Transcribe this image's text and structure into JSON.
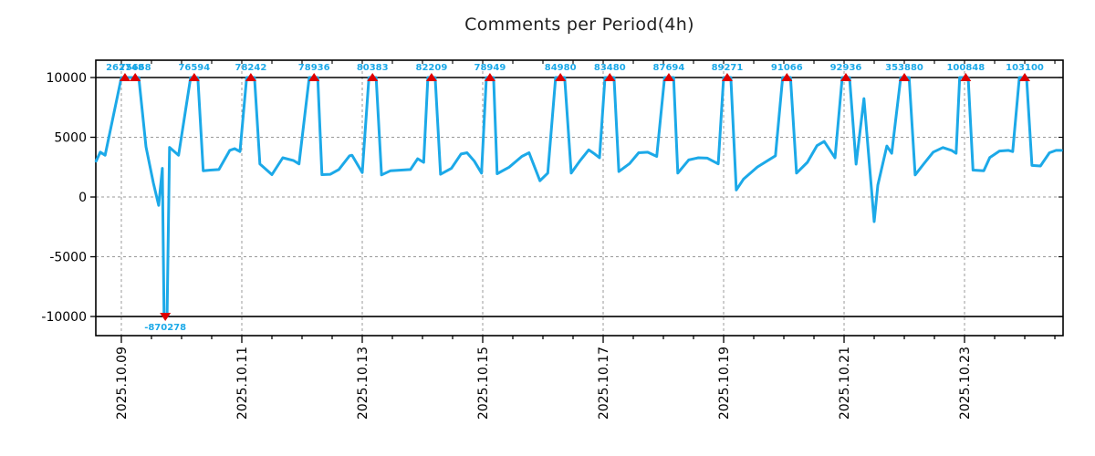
{
  "title": "Comments per Period(4h)",
  "chart_data": {
    "type": "line",
    "title": "Comments per Period(4h)",
    "xlabel": "",
    "ylabel": "",
    "x_unit": "days since 2025-10-09 00:00, sampled every 4h",
    "xlim": [
      -0.424,
      15.636
    ],
    "ylim": [
      -11600,
      11450
    ],
    "clip_value": 10000,
    "clip_lines": [
      10000,
      -10000
    ],
    "grid": "dashed gray at inner y ticks and major x ticks",
    "legend": "none",
    "line_color": "#1CA9E8",
    "marker_color": "#DE0000",
    "grid_color": "#9a9a9a",
    "axis_color": "#000000",
    "yticks": [
      {
        "v": 10000,
        "label": "10000"
      },
      {
        "v": 5000,
        "label": "5000"
      },
      {
        "v": 0,
        "label": "0"
      },
      {
        "v": -5000,
        "label": "-5000"
      },
      {
        "v": -10000,
        "label": "-10000"
      }
    ],
    "xticks": [
      {
        "t": 0,
        "label": "2025.10.09"
      },
      {
        "t": 2,
        "label": "2025.10.11"
      },
      {
        "t": 4,
        "label": "2025.10.13"
      },
      {
        "t": 6,
        "label": "2025.10.15"
      },
      {
        "t": 8,
        "label": "2025.10.17"
      },
      {
        "t": 10,
        "label": "2025.10.19"
      },
      {
        "t": 12,
        "label": "2025.10.21"
      },
      {
        "t": 14,
        "label": "2025.10.23"
      }
    ],
    "minor_tick_interval_days": 0.5,
    "peak_annotations": [
      {
        "t": 0.06,
        "label": "262748"
      },
      {
        "t": 0.23,
        "label": "75668"
      },
      {
        "t": 1.21,
        "label": "76594"
      },
      {
        "t": 2.15,
        "label": "78242"
      },
      {
        "t": 3.2,
        "label": "78936"
      },
      {
        "t": 4.17,
        "label": "80383"
      },
      {
        "t": 5.15,
        "label": "82209"
      },
      {
        "t": 6.12,
        "label": "78949"
      },
      {
        "t": 7.29,
        "label": "84980"
      },
      {
        "t": 8.11,
        "label": "83480"
      },
      {
        "t": 9.09,
        "label": "87694"
      },
      {
        "t": 10.06,
        "label": "89271"
      },
      {
        "t": 11.05,
        "label": "91066"
      },
      {
        "t": 12.03,
        "label": "92936"
      },
      {
        "t": 13.0,
        "label": "353880"
      },
      {
        "t": 14.02,
        "label": "100848"
      },
      {
        "t": 15.0,
        "label": "103100"
      }
    ],
    "min_annotations": [
      {
        "t": 0.73,
        "label": "-870278"
      }
    ],
    "series_clipped": [
      [
        -0.42,
        3000
      ],
      [
        -0.35,
        3760
      ],
      [
        -0.27,
        3500
      ],
      [
        0.0,
        10000
      ],
      [
        0.29,
        10000
      ],
      [
        0.41,
        4200
      ],
      [
        0.53,
        1200
      ],
      [
        0.62,
        -700
      ],
      [
        0.68,
        2400
      ],
      [
        0.71,
        -10000
      ],
      [
        0.76,
        -10000
      ],
      [
        0.8,
        4150
      ],
      [
        0.95,
        3500
      ],
      [
        1.15,
        10000
      ],
      [
        1.27,
        10000
      ],
      [
        1.36,
        2200
      ],
      [
        1.48,
        2250
      ],
      [
        1.62,
        2300
      ],
      [
        1.8,
        3900
      ],
      [
        1.88,
        4050
      ],
      [
        1.97,
        3800
      ],
      [
        2.08,
        10000
      ],
      [
        2.21,
        10000
      ],
      [
        2.3,
        2770
      ],
      [
        2.5,
        1870
      ],
      [
        2.68,
        3280
      ],
      [
        2.86,
        3050
      ],
      [
        2.95,
        2770
      ],
      [
        3.12,
        10000
      ],
      [
        3.26,
        10000
      ],
      [
        3.33,
        1870
      ],
      [
        3.47,
        1900
      ],
      [
        3.61,
        2300
      ],
      [
        3.79,
        3450
      ],
      [
        3.83,
        3500
      ],
      [
        4.0,
        2050
      ],
      [
        4.11,
        10000
      ],
      [
        4.23,
        10000
      ],
      [
        4.32,
        1850
      ],
      [
        4.47,
        2200
      ],
      [
        4.65,
        2250
      ],
      [
        4.8,
        2300
      ],
      [
        4.92,
        3200
      ],
      [
        5.02,
        2900
      ],
      [
        5.09,
        10000
      ],
      [
        5.21,
        10000
      ],
      [
        5.3,
        1900
      ],
      [
        5.48,
        2400
      ],
      [
        5.64,
        3600
      ],
      [
        5.74,
        3700
      ],
      [
        5.86,
        3000
      ],
      [
        5.98,
        2000
      ],
      [
        6.06,
        10000
      ],
      [
        6.18,
        10000
      ],
      [
        6.24,
        1950
      ],
      [
        6.44,
        2500
      ],
      [
        6.65,
        3400
      ],
      [
        6.77,
        3700
      ],
      [
        6.95,
        1360
      ],
      [
        7.08,
        2000
      ],
      [
        7.21,
        10000
      ],
      [
        7.36,
        10000
      ],
      [
        7.47,
        2000
      ],
      [
        7.61,
        3000
      ],
      [
        7.76,
        3950
      ],
      [
        7.86,
        3600
      ],
      [
        7.94,
        3280
      ],
      [
        8.03,
        10000
      ],
      [
        8.18,
        10000
      ],
      [
        8.26,
        2130
      ],
      [
        8.44,
        2800
      ],
      [
        8.59,
        3700
      ],
      [
        8.74,
        3750
      ],
      [
        8.89,
        3400
      ],
      [
        9.02,
        10000
      ],
      [
        9.17,
        10000
      ],
      [
        9.24,
        2000
      ],
      [
        9.42,
        3100
      ],
      [
        9.58,
        3280
      ],
      [
        9.73,
        3250
      ],
      [
        9.91,
        2770
      ],
      [
        10.0,
        10000
      ],
      [
        10.12,
        10000
      ],
      [
        10.21,
        590
      ],
      [
        10.33,
        1500
      ],
      [
        10.56,
        2510
      ],
      [
        10.86,
        3450
      ],
      [
        10.98,
        10000
      ],
      [
        11.11,
        10000
      ],
      [
        11.21,
        2000
      ],
      [
        11.39,
        2900
      ],
      [
        11.55,
        4300
      ],
      [
        11.67,
        4650
      ],
      [
        11.85,
        3280
      ],
      [
        11.97,
        10000
      ],
      [
        12.09,
        10000
      ],
      [
        12.2,
        2750
      ],
      [
        12.33,
        8240
      ],
      [
        12.5,
        -2060
      ],
      [
        12.56,
        990
      ],
      [
        12.71,
        4270
      ],
      [
        12.79,
        3660
      ],
      [
        12.94,
        10000
      ],
      [
        13.08,
        10000
      ],
      [
        13.18,
        1850
      ],
      [
        13.32,
        2750
      ],
      [
        13.48,
        3760
      ],
      [
        13.64,
        4140
      ],
      [
        13.79,
        3890
      ],
      [
        13.86,
        3660
      ],
      [
        13.92,
        10000
      ],
      [
        14.06,
        10000
      ],
      [
        14.14,
        2250
      ],
      [
        14.32,
        2200
      ],
      [
        14.42,
        3300
      ],
      [
        14.58,
        3850
      ],
      [
        14.73,
        3900
      ],
      [
        14.8,
        3800
      ],
      [
        14.91,
        10000
      ],
      [
        15.03,
        10000
      ],
      [
        15.12,
        2640
      ],
      [
        15.26,
        2600
      ],
      [
        15.41,
        3700
      ],
      [
        15.52,
        3900
      ],
      [
        15.61,
        3900
      ]
    ]
  }
}
